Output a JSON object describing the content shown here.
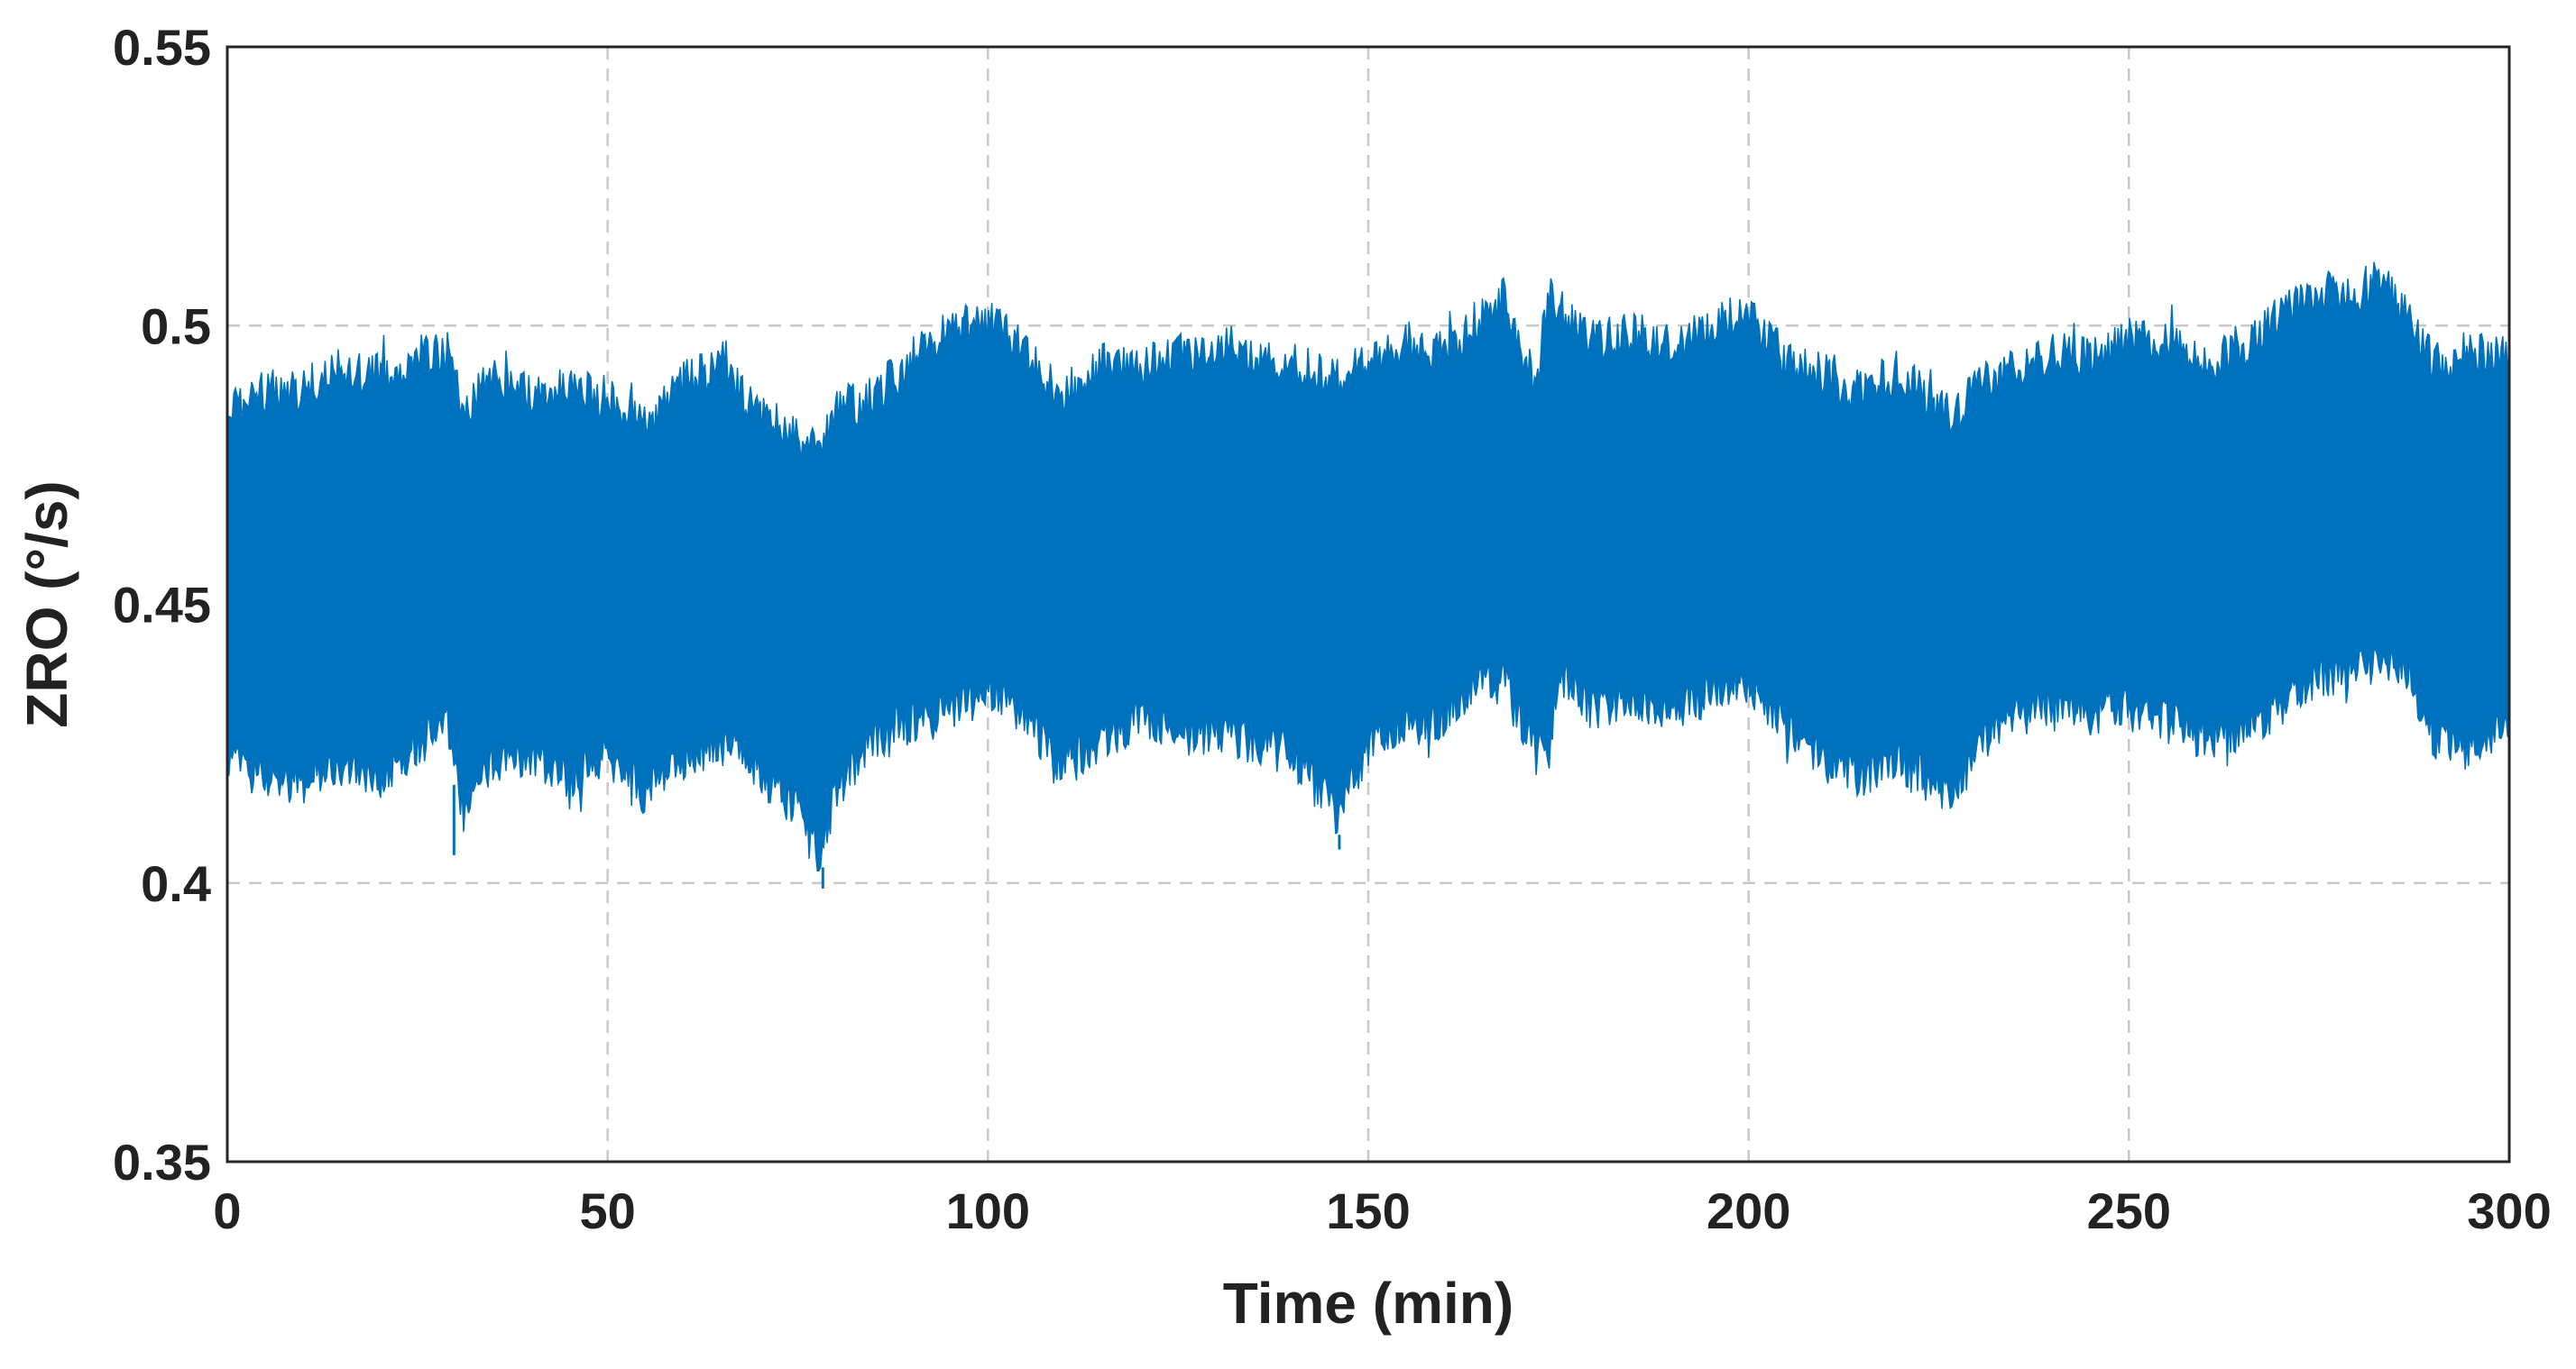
{
  "chart_data": {
    "type": "area",
    "title": "",
    "xlabel": "Time (min)",
    "ylabel": "ZRO (°/s)",
    "xlim": [
      0,
      300
    ],
    "ylim": [
      0.35,
      0.55
    ],
    "x_ticks": [
      0,
      50,
      100,
      150,
      200,
      250,
      300
    ],
    "x_tick_labels": [
      "0",
      "50",
      "100",
      "150",
      "200",
      "250",
      "300"
    ],
    "y_ticks": [
      0.35,
      0.4,
      0.45,
      0.5,
      0.55
    ],
    "y_tick_labels": [
      "0.35",
      "0.4",
      "0.45",
      "0.5",
      "0.55"
    ],
    "grid": true,
    "series": [
      {
        "color": "#0072BD",
        "x": [
          0,
          5,
          10,
          15,
          20,
          25,
          29,
          31,
          35,
          40,
          45,
          50,
          55,
          60,
          65,
          70,
          75,
          78,
          80,
          85,
          90,
          95,
          100,
          105,
          110,
          115,
          120,
          125,
          130,
          135,
          140,
          146,
          150,
          155,
          160,
          165,
          168,
          172,
          174,
          175,
          180,
          185,
          190,
          195,
          200,
          205,
          210,
          215,
          220,
          225,
          227,
          230,
          235,
          240,
          245,
          250,
          255,
          260,
          265,
          270,
          275,
          280,
          283,
          287,
          290,
          295,
          300
        ],
        "upper": [
          0.489,
          0.492,
          0.493,
          0.497,
          0.495,
          0.498,
          0.499,
          0.489,
          0.495,
          0.491,
          0.493,
          0.491,
          0.486,
          0.494,
          0.496,
          0.488,
          0.484,
          0.482,
          0.489,
          0.491,
          0.498,
          0.503,
          0.505,
          0.499,
          0.491,
          0.497,
          0.496,
          0.499,
          0.501,
          0.499,
          0.497,
          0.495,
          0.497,
          0.501,
          0.499,
          0.506,
          0.509,
          0.493,
          0.511,
          0.507,
          0.501,
          0.503,
          0.5,
          0.504,
          0.506,
          0.497,
          0.495,
          0.492,
          0.496,
          0.489,
          0.488,
          0.493,
          0.496,
          0.499,
          0.498,
          0.502,
          0.501,
          0.497,
          0.499,
          0.506,
          0.51,
          0.51,
          0.513,
          0.504,
          0.497,
          0.498,
          0.5
        ],
        "lower": [
          0.418,
          0.415,
          0.414,
          0.418,
          0.415,
          0.421,
          0.424,
          0.408,
          0.418,
          0.419,
          0.415,
          0.419,
          0.412,
          0.418,
          0.421,
          0.416,
          0.409,
          0.401,
          0.413,
          0.422,
          0.425,
          0.426,
          0.431,
          0.425,
          0.417,
          0.421,
          0.426,
          0.422,
          0.423,
          0.421,
          0.419,
          0.408,
          0.421,
          0.424,
          0.426,
          0.432,
          0.432,
          0.419,
          0.42,
          0.434,
          0.426,
          0.429,
          0.427,
          0.43,
          0.432,
          0.423,
          0.418,
          0.415,
          0.418,
          0.413,
          0.411,
          0.421,
          0.426,
          0.428,
          0.426,
          0.428,
          0.425,
          0.422,
          0.423,
          0.428,
          0.433,
          0.435,
          0.436,
          0.433,
          0.422,
          0.42,
          0.424
        ]
      }
    ]
  }
}
